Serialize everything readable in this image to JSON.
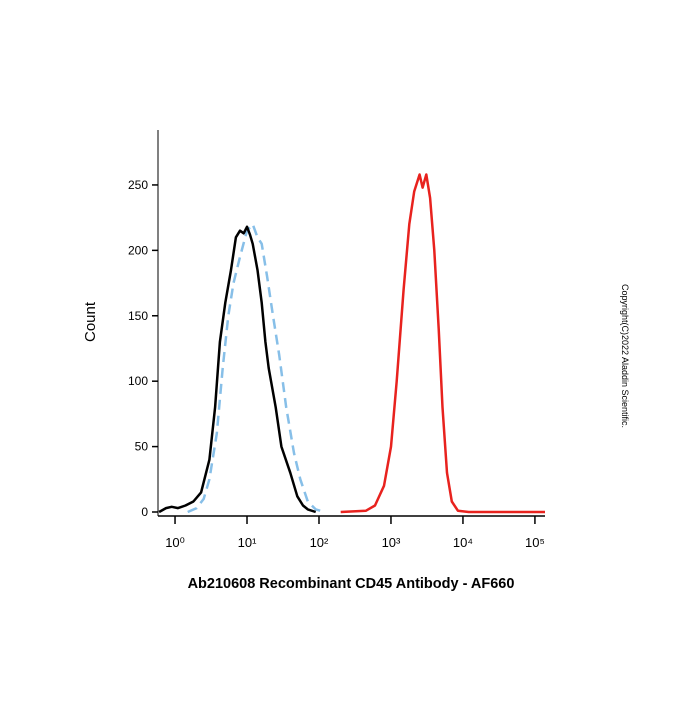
{
  "chart_data": {
    "type": "line",
    "xlabel": "Ab210608 Recombinant CD45 Antibody - AF660",
    "ylabel": "Count",
    "annotation": "Copyright(C)2022 Aladdin Scientific.",
    "xscale": "log",
    "xlim": [
      0.58,
      138000
    ],
    "ylim": [
      0,
      292
    ],
    "xticks": [
      {
        "value": 1,
        "label": "10⁰"
      },
      {
        "value": 10,
        "label": "10¹"
      },
      {
        "value": 100,
        "label": "10²"
      },
      {
        "value": 1000,
        "label": "10³"
      },
      {
        "value": 10000,
        "label": "10⁴"
      },
      {
        "value": 100000,
        "label": "10⁵"
      }
    ],
    "yticks": [
      0,
      50,
      100,
      150,
      200,
      250
    ],
    "series": [
      {
        "color": "#87bfe8",
        "dashed": true,
        "x": [
          1.5,
          2,
          2.5,
          3,
          3.8,
          4.6,
          5.5,
          6.5,
          8,
          10,
          12,
          14,
          16,
          19,
          23,
          28,
          35,
          45,
          55,
          70,
          90,
          120
        ],
        "values": [
          0,
          3,
          10,
          25,
          60,
          110,
          150,
          175,
          195,
          215,
          220,
          210,
          205,
          180,
          150,
          120,
          80,
          45,
          25,
          8,
          2,
          0
        ]
      },
      {
        "color": "#000000",
        "dashed": false,
        "x": [
          0.6,
          0.75,
          0.9,
          1.1,
          1.4,
          1.8,
          2.3,
          3,
          3.6,
          4.2,
          5,
          6,
          7,
          8,
          9,
          10,
          11,
          12,
          14,
          16,
          18,
          20,
          25,
          30,
          40,
          50,
          60,
          70,
          90
        ],
        "values": [
          0,
          3,
          4,
          3,
          5,
          8,
          15,
          40,
          80,
          130,
          160,
          185,
          210,
          215,
          213,
          218,
          212,
          205,
          185,
          160,
          130,
          110,
          80,
          50,
          30,
          12,
          5,
          2,
          0
        ]
      },
      {
        "color": "#e8221e",
        "dashed": false,
        "x": [
          200,
          450,
          600,
          800,
          1000,
          1200,
          1500,
          1800,
          2100,
          2500,
          2750,
          3100,
          3500,
          4000,
          4600,
          5200,
          6000,
          7000,
          8500,
          12000,
          138000
        ],
        "values": [
          0,
          1,
          5,
          20,
          50,
          100,
          170,
          220,
          245,
          258,
          248,
          258,
          240,
          200,
          140,
          80,
          30,
          8,
          1,
          0,
          0
        ]
      }
    ]
  }
}
